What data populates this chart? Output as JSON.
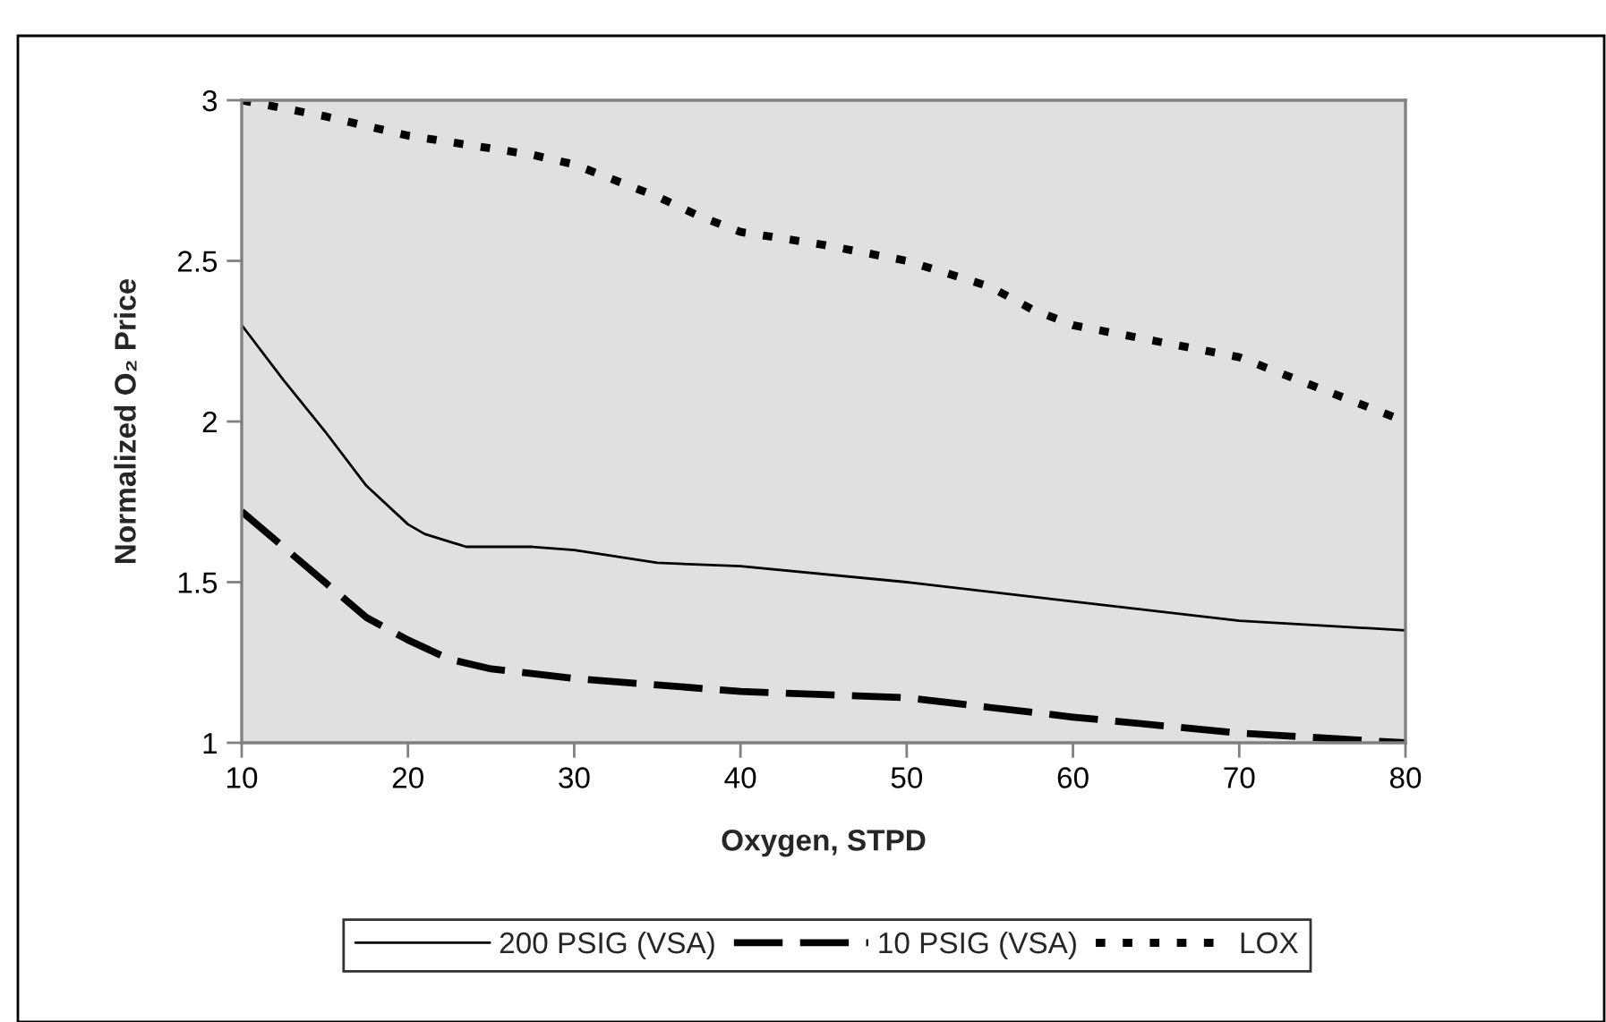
{
  "chart_data": {
    "type": "line",
    "xlabel": "Oxygen, STPD",
    "ylabel": "Normalized O₂ Price",
    "xlim": [
      10,
      80
    ],
    "xticks": [
      10,
      20,
      30,
      40,
      50,
      60,
      70,
      80
    ],
    "ylim": [
      1,
      3
    ],
    "yticks": [
      1,
      1.5,
      2,
      2.5,
      3
    ],
    "grid": false,
    "legend": "bottom",
    "marker": "none",
    "series": [
      {
        "name": "200 PSIG (VSA)",
        "color": "#000000",
        "line_style": "solid",
        "x": [
          10,
          12.5,
          15,
          17.5,
          20,
          21,
          23.5,
          27.5,
          30,
          35,
          40,
          50,
          60,
          70,
          80
        ],
        "values": [
          2.3,
          2.13,
          1.97,
          1.8,
          1.68,
          1.65,
          1.61,
          1.61,
          1.6,
          1.56,
          1.55,
          1.5,
          1.44,
          1.38,
          1.35
        ]
      },
      {
        "name": "10 PSIG (VSA)",
        "color": "#000000",
        "line_style": "dashed",
        "x": [
          10,
          15,
          17.5,
          20,
          22.5,
          25,
          30,
          35,
          40,
          45,
          50,
          55,
          60,
          70,
          80
        ],
        "values": [
          1.72,
          1.5,
          1.39,
          1.32,
          1.26,
          1.23,
          1.2,
          1.18,
          1.16,
          1.15,
          1.14,
          1.11,
          1.08,
          1.03,
          1.0
        ]
      },
      {
        "name": "LOX",
        "color": "#000000",
        "line_style": "dotted",
        "x": [
          10,
          15,
          20,
          25,
          27.5,
          30,
          35,
          37.5,
          40,
          45,
          50,
          55,
          57.5,
          60,
          65,
          70,
          75,
          80
        ],
        "values": [
          3.0,
          2.95,
          2.89,
          2.85,
          2.83,
          2.8,
          2.7,
          2.64,
          2.59,
          2.55,
          2.5,
          2.42,
          2.35,
          2.3,
          2.25,
          2.2,
          2.1,
          2.0
        ]
      }
    ]
  }
}
